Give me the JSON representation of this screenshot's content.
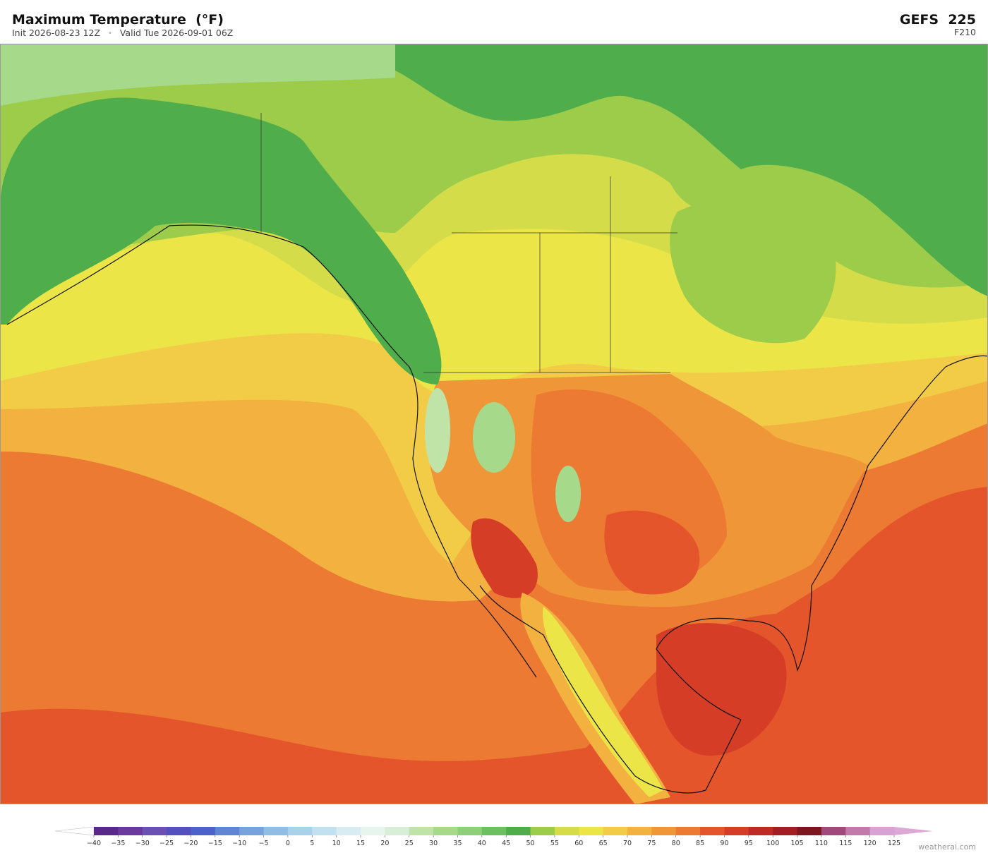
{
  "header": {
    "title": "Maximum Temperature  (°F)",
    "subtitle": "Init 2026-08-23 12Z   ·   Valid Tue 2026-09-01 06Z",
    "model": "GEFS  225",
    "forecast_hour": "F210"
  },
  "colorbar": {
    "ticks": [
      {
        "value": -40,
        "label": "−40"
      },
      {
        "value": -35,
        "label": "−35"
      },
      {
        "value": -30,
        "label": "−30"
      },
      {
        "value": -25,
        "label": "−25"
      },
      {
        "value": -20,
        "label": "−20"
      },
      {
        "value": -15,
        "label": "−15"
      },
      {
        "value": -10,
        "label": "−10"
      },
      {
        "value": -5,
        "label": "−5"
      },
      0,
      5,
      10,
      15,
      20,
      25,
      30,
      35,
      40,
      45,
      50,
      55,
      60,
      65,
      70,
      75,
      80,
      85,
      90,
      95,
      100,
      105,
      110,
      115,
      120,
      125
    ],
    "colors": [
      "#58288a",
      "#6a3a9e",
      "#6a50b2",
      "#5450c0",
      "#4a62ca",
      "#5f86d4",
      "#76a3dc",
      "#90bde3",
      "#a8d1ea",
      "#c2e1f0",
      "#d8ecf2",
      "#e8f4ee",
      "#d8eed6",
      "#c0e4a8",
      "#a6da8a",
      "#8ed079",
      "#6cc060",
      "#4fae4b",
      "#9ccc4a",
      "#d4dc4a",
      "#ece547",
      "#f2cc47",
      "#f3b140",
      "#ef9638",
      "#ec7a32",
      "#e4552b",
      "#d63d27",
      "#be2b25",
      "#a21e22",
      "#7c1620",
      "#a04a7c",
      "#c27aaa",
      "#d8a2d2"
    ],
    "under_color": "#ffffff",
    "over_color": "#dca8d6"
  },
  "watermark": "weatherai.com"
}
